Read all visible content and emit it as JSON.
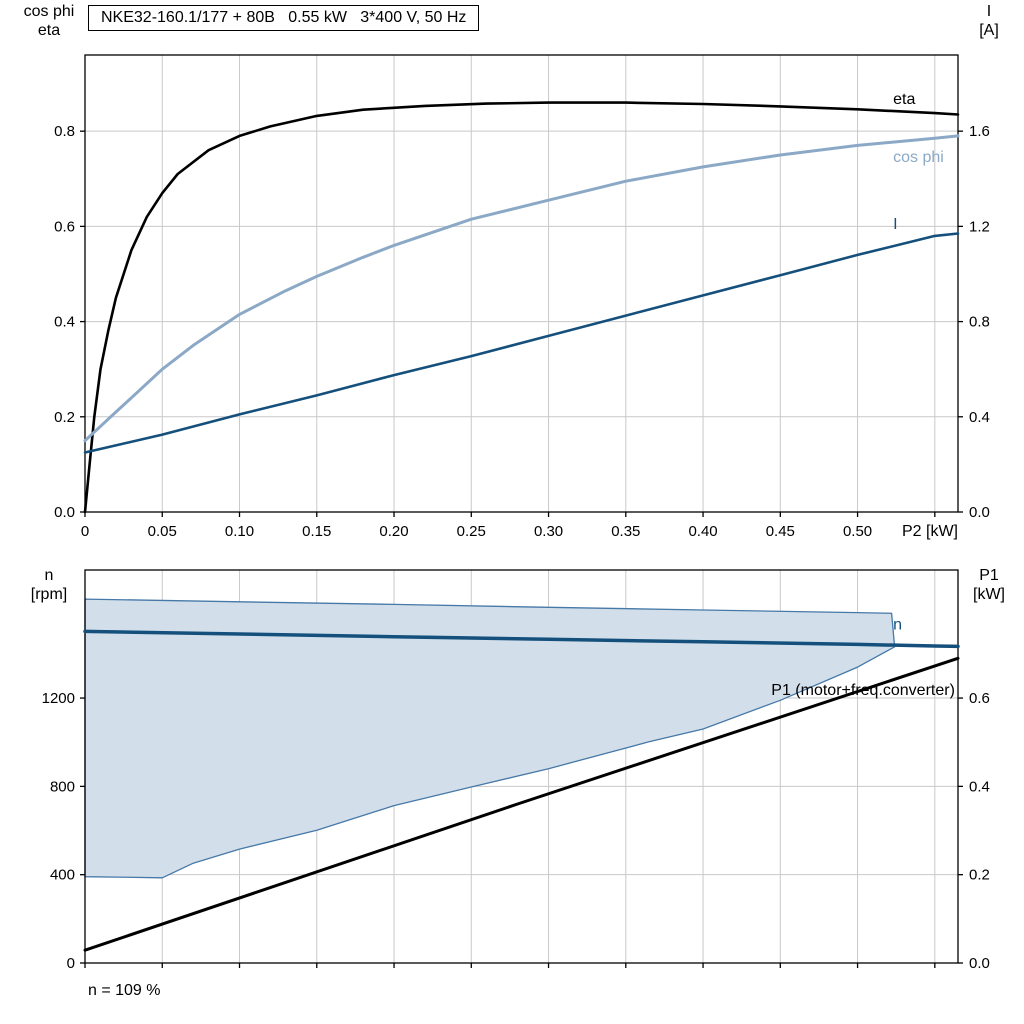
{
  "title_box": {
    "text": "NKE32-160.1/177 + 80B   0.55 kW   3*400 V, 50 Hz"
  },
  "footer": {
    "text": "n = 109 %"
  },
  "axis_titles": {
    "top_left_1": "cos phi",
    "top_left_2": "eta",
    "top_right_1": "I",
    "top_right_2": "[A]",
    "bottom_left_1": "n",
    "bottom_left_2": "[rpm]",
    "bottom_right_1": "P1",
    "bottom_right_2": "[kW]"
  },
  "colors": {
    "grid": "#c9c9c9",
    "frame": "#000000",
    "eta": "#000000",
    "cos_phi": "#8ba9c6",
    "current": "#15507d",
    "speed": "#15507d",
    "power": "#000000",
    "envelope_fill": "#d2dfea",
    "envelope_stroke": "#4678a8"
  },
  "chart_data": [
    {
      "type": "line",
      "title": "NKE32-160.1/177 + 80B   0.55 kW   3*400 V, 50 Hz",
      "x_axis": {
        "label": "P2 [kW]",
        "range": [
          0,
          0.565
        ],
        "ticks": [
          0,
          0.05,
          0.1,
          0.15,
          0.2,
          0.25,
          0.3,
          0.35,
          0.4,
          0.45,
          0.5,
          0.55
        ],
        "tick_labels": [
          "0",
          "0.05",
          "0.10",
          "0.15",
          "0.20",
          "0.25",
          "0.30",
          "0.35",
          "0.40",
          "0.45",
          "0.50",
          ""
        ]
      },
      "y_left": {
        "label": "cos phi / eta",
        "range": [
          0,
          0.96
        ],
        "ticks": [
          0,
          0.2,
          0.4,
          0.6,
          0.8
        ],
        "tick_labels": [
          "0.0",
          "0.2",
          "0.4",
          "0.6",
          "0.8"
        ]
      },
      "y_right": {
        "label": "I [A]",
        "range": [
          0,
          1.92
        ],
        "ticks": [
          0,
          0.4,
          0.8,
          1.2,
          1.6
        ],
        "tick_labels": [
          "0.0",
          "0.4",
          "0.8",
          "1.2",
          "1.6"
        ]
      },
      "series": [
        {
          "name": "eta",
          "axis": "left",
          "color": "#000000",
          "width": 2.6,
          "points": [
            [
              0,
              0
            ],
            [
              0.003,
              0.1
            ],
            [
              0.006,
              0.2
            ],
            [
              0.01,
              0.3
            ],
            [
              0.015,
              0.38
            ],
            [
              0.02,
              0.45
            ],
            [
              0.03,
              0.55
            ],
            [
              0.04,
              0.62
            ],
            [
              0.05,
              0.67
            ],
            [
              0.06,
              0.71
            ],
            [
              0.08,
              0.76
            ],
            [
              0.1,
              0.79
            ],
            [
              0.12,
              0.81
            ],
            [
              0.15,
              0.832
            ],
            [
              0.18,
              0.845
            ],
            [
              0.22,
              0.853
            ],
            [
              0.26,
              0.858
            ],
            [
              0.3,
              0.86
            ],
            [
              0.35,
              0.86
            ],
            [
              0.4,
              0.857
            ],
            [
              0.45,
              0.852
            ],
            [
              0.5,
              0.846
            ],
            [
              0.55,
              0.838
            ],
            [
              0.565,
              0.835
            ]
          ]
        },
        {
          "name": "cos phi",
          "axis": "left",
          "color": "#8ba9c6",
          "width": 3,
          "points": [
            [
              0,
              0.15
            ],
            [
              0.01,
              0.18
            ],
            [
              0.02,
              0.21
            ],
            [
              0.03,
              0.24
            ],
            [
              0.05,
              0.3
            ],
            [
              0.07,
              0.35
            ],
            [
              0.1,
              0.415
            ],
            [
              0.13,
              0.465
            ],
            [
              0.15,
              0.495
            ],
            [
              0.18,
              0.535
            ],
            [
              0.2,
              0.56
            ],
            [
              0.25,
              0.615
            ],
            [
              0.3,
              0.655
            ],
            [
              0.35,
              0.695
            ],
            [
              0.4,
              0.725
            ],
            [
              0.45,
              0.75
            ],
            [
              0.5,
              0.77
            ],
            [
              0.55,
              0.785
            ],
            [
              0.565,
              0.79
            ]
          ]
        },
        {
          "name": "I",
          "axis": "right",
          "color": "#15507d",
          "width": 2.6,
          "points": [
            [
              0,
              0.25
            ],
            [
              0.05,
              0.325
            ],
            [
              0.1,
              0.41
            ],
            [
              0.15,
              0.49
            ],
            [
              0.2,
              0.575
            ],
            [
              0.25,
              0.655
            ],
            [
              0.3,
              0.74
            ],
            [
              0.35,
              0.825
            ],
            [
              0.4,
              0.91
            ],
            [
              0.45,
              0.995
            ],
            [
              0.5,
              1.08
            ],
            [
              0.55,
              1.16
            ],
            [
              0.565,
              1.17
            ]
          ]
        }
      ],
      "annotations": [
        {
          "text": "eta",
          "axis": "left",
          "x": 0.523,
          "y": 0.857,
          "anchor": "start",
          "color": "#000000"
        },
        {
          "text": "cos phi",
          "axis": "left",
          "x": 0.523,
          "y": 0.735,
          "anchor": "start",
          "color": "#8ba9c6"
        },
        {
          "text": "I",
          "axis": "right",
          "x": 0.523,
          "y": 1.19,
          "anchor": "start",
          "color": "#15507d"
        }
      ]
    },
    {
      "type": "line",
      "title": "Speed and input power vs shaft power",
      "x_axis": {
        "label": "",
        "range": [
          0,
          0.565
        ],
        "ticks": [
          0,
          0.05,
          0.1,
          0.15,
          0.2,
          0.25,
          0.3,
          0.35,
          0.4,
          0.45,
          0.5,
          0.55
        ],
        "tick_labels": []
      },
      "y_left": {
        "label": "n [rpm]",
        "range": [
          0,
          1780
        ],
        "ticks": [
          0,
          400,
          800,
          1200
        ],
        "tick_labels": [
          "0",
          "400",
          "800",
          "1200"
        ]
      },
      "y_right": {
        "label": "P1 [kW]",
        "range": [
          0,
          0.89
        ],
        "ticks": [
          0,
          0.2,
          0.4,
          0.6
        ],
        "tick_labels": [
          "0.0",
          "0.2",
          "0.4",
          "0.6"
        ]
      },
      "region": {
        "name": "speed-control-envelope",
        "fill": "#d2dfea",
        "stroke": "#4678a8",
        "points": [
          [
            0,
            1648
          ],
          [
            0.1,
            1636
          ],
          [
            0.2,
            1624
          ],
          [
            0.3,
            1611
          ],
          [
            0.4,
            1599
          ],
          [
            0.5,
            1587
          ],
          [
            0.522,
            1584
          ],
          [
            0.524,
            1432
          ],
          [
            0.5,
            1340
          ],
          [
            0.45,
            1190
          ],
          [
            0.4,
            1060
          ],
          [
            0.365,
            1002
          ],
          [
            0.3,
            880
          ],
          [
            0.25,
            797
          ],
          [
            0.2,
            713
          ],
          [
            0.15,
            601
          ],
          [
            0.1,
            516
          ],
          [
            0.07,
            452
          ],
          [
            0.05,
            386
          ],
          [
            0.02,
            389
          ],
          [
            0,
            391
          ]
        ]
      },
      "series": [
        {
          "name": "n",
          "axis": "left",
          "color": "#15507d",
          "width": 3.5,
          "points": [
            [
              0,
              1502
            ],
            [
              0.1,
              1490
            ],
            [
              0.2,
              1478
            ],
            [
              0.3,
              1466
            ],
            [
              0.4,
              1455
            ],
            [
              0.5,
              1443
            ],
            [
              0.55,
              1436
            ],
            [
              0.565,
              1434
            ]
          ]
        },
        {
          "name": "P1 (motor+freq.converter)",
          "axis": "right",
          "color": "#000000",
          "width": 3,
          "points": [
            [
              0,
              0.029
            ],
            [
              0.28,
              0.36
            ],
            [
              0.565,
              0.69
            ]
          ]
        }
      ],
      "annotations": [
        {
          "text": "n",
          "axis": "left",
          "x": 0.523,
          "y": 1510,
          "anchor": "start",
          "color": "#15507d"
        },
        {
          "text": "P1 (motor+freq.converter)",
          "axis": "right",
          "x": 0.563,
          "y": 0.607,
          "anchor": "end",
          "color": "#000000"
        }
      ]
    }
  ]
}
